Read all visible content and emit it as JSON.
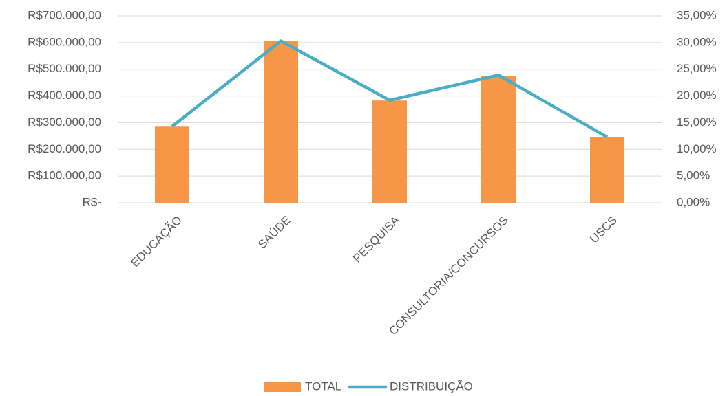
{
  "chart_data": {
    "type": "bar_line",
    "categories": [
      "EDUCAÇÃO",
      "SAÚDE",
      "PESQUISA",
      "CONSULTORIA/CONCURSOS",
      "USCS"
    ],
    "series": [
      {
        "name": "TOTAL",
        "type": "bar",
        "color": "#f79646",
        "values": [
          285000,
          605000,
          383000,
          476000,
          245000
        ]
      },
      {
        "name": "DISTRIBUIÇÃO",
        "type": "line",
        "axis": "y2",
        "color": "#4bacc6",
        "values": [
          14.3,
          30.3,
          19.2,
          23.9,
          12.3
        ]
      }
    ],
    "ylim": [
      0,
      700000
    ],
    "yticks": [
      {
        "value": 0,
        "label": "R$-"
      },
      {
        "value": 100000,
        "label": "R$100.000,00"
      },
      {
        "value": 200000,
        "label": "R$200.000,00"
      },
      {
        "value": 300000,
        "label": "R$300.000,00"
      },
      {
        "value": 400000,
        "label": "R$400.000,00"
      },
      {
        "value": 500000,
        "label": "R$500.000,00"
      },
      {
        "value": 600000,
        "label": "R$600.000,00"
      },
      {
        "value": 700000,
        "label": "R$700.000,00"
      }
    ],
    "y2lim": [
      0,
      35
    ],
    "y2ticks": [
      {
        "value": 0,
        "label": "0,00%"
      },
      {
        "value": 5,
        "label": "5,00%"
      },
      {
        "value": 10,
        "label": "10,00%"
      },
      {
        "value": 15,
        "label": "15,00%"
      },
      {
        "value": 20,
        "label": "20,00%"
      },
      {
        "value": 25,
        "label": "25,00%"
      },
      {
        "value": 30,
        "label": "30,00%"
      },
      {
        "value": 35,
        "label": "35,00%"
      }
    ],
    "grid": true,
    "legend": "bottom"
  }
}
